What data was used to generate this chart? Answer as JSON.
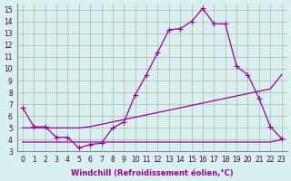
{
  "xlabel": "Windchill (Refroidissement éolien,°C)",
  "hours": [
    0,
    1,
    2,
    3,
    4,
    5,
    6,
    7,
    8,
    9,
    10,
    11,
    12,
    13,
    14,
    15,
    16,
    17,
    18,
    19,
    20,
    21,
    22,
    23
  ],
  "line1": [
    6.7,
    5.1,
    5.1,
    4.2,
    4.2,
    3.3,
    3.6,
    3.7,
    5.0,
    5.5,
    7.8,
    9.5,
    11.4,
    13.3,
    13.4,
    14.0,
    15.1,
    13.8,
    13.8,
    10.2,
    9.5,
    7.5,
    5.1,
    4.1
  ],
  "line2": [
    5.0,
    5.0,
    5.0,
    5.0,
    5.0,
    5.0,
    5.1,
    5.3,
    5.5,
    5.7,
    5.9,
    6.1,
    6.3,
    6.5,
    6.7,
    6.9,
    7.1,
    7.3,
    7.5,
    7.7,
    7.9,
    8.1,
    8.3,
    9.5
  ],
  "line3": [
    3.8,
    3.8,
    3.8,
    3.8,
    3.8,
    3.8,
    3.8,
    3.8,
    3.8,
    3.8,
    3.8,
    3.8,
    3.8,
    3.8,
    3.8,
    3.8,
    3.8,
    3.8,
    3.8,
    3.8,
    3.8,
    3.8,
    3.8,
    4.0
  ],
  "line_color": "#990099",
  "marker": "+",
  "bg_color": "#d8f0f0",
  "grid_color": "#b0b0b0",
  "ylim": [
    3,
    15.5
  ],
  "yticks": [
    3,
    4,
    5,
    6,
    7,
    8,
    9,
    10,
    11,
    12,
    13,
    14,
    15
  ],
  "xlim": [
    -0.5,
    23.5
  ]
}
